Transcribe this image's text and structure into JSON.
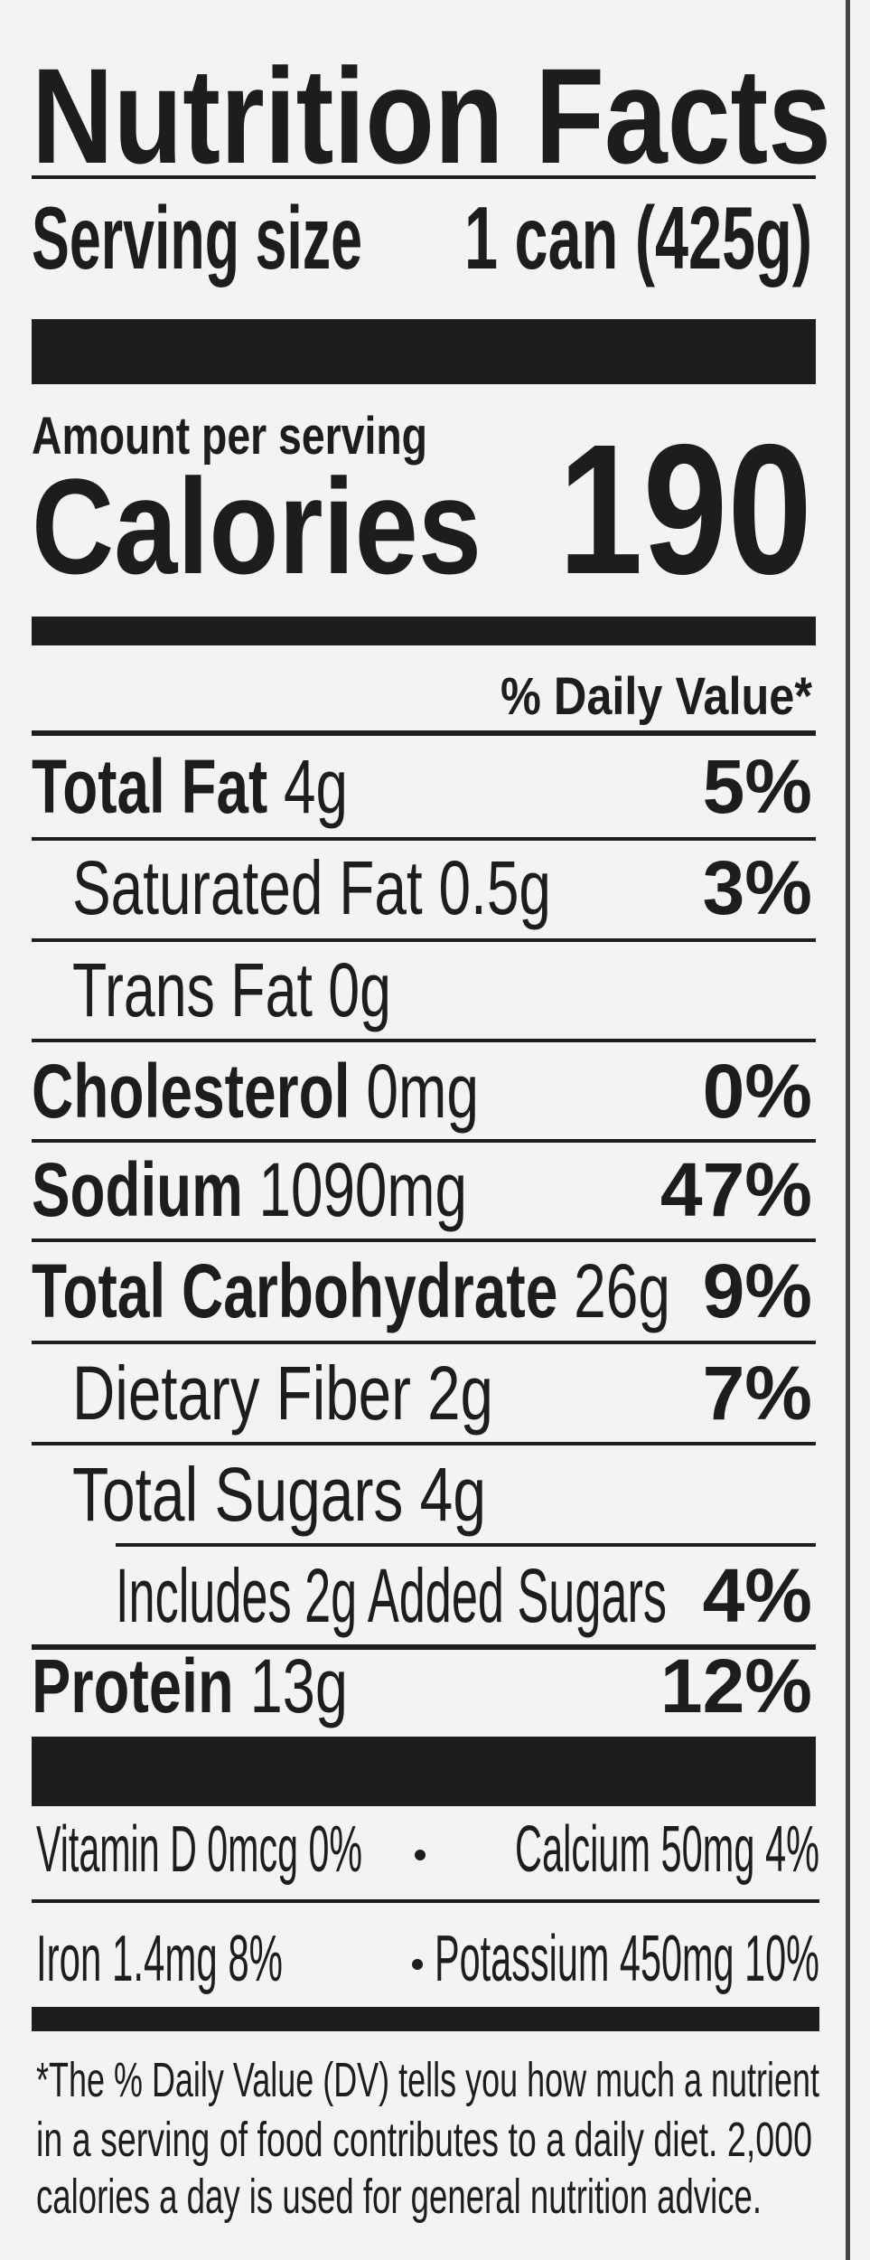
{
  "header": {
    "title": "Nutrition Facts"
  },
  "serving": {
    "label": "Serving size",
    "value": "1 can (425g)"
  },
  "amount_per_serving": "Amount per serving",
  "calories": {
    "label": "Calories",
    "value": 190
  },
  "daily_value_header": "% Daily Value*",
  "nutrients": [
    {
      "name": "Total Fat",
      "amount": "4g",
      "dv": "5%"
    },
    {
      "name": "Saturated Fat",
      "amount": "0.5g",
      "dv": "3%"
    },
    {
      "name": "Trans Fat",
      "amount": "0g"
    },
    {
      "name": "Cholesterol",
      "amount": "0mg",
      "dv": "0%"
    },
    {
      "name": "Sodium",
      "amount": "1090mg",
      "dv": "47%"
    },
    {
      "name": "Total Carbohydrate",
      "amount": "26g",
      "dv": "9%"
    },
    {
      "name": "Dietary Fiber",
      "amount": "2g",
      "dv": "7%"
    },
    {
      "name": "Total Sugars",
      "amount": "4g"
    },
    {
      "name": "Includes 2g Added Sugars",
      "dv": "4%"
    },
    {
      "name": "Protein",
      "amount": "13g",
      "dv": "12%"
    }
  ],
  "micronutrients": [
    "Vitamin D 0mcg 0%",
    "Calcium 50mg 4%",
    "Iron 1.4mg 8%",
    "Potassium 450mg 10%"
  ],
  "footnote": [
    "*The % Daily Value (DV) tells you how much a nutrient",
    "in a serving of food contributes to a daily diet. 2,000",
    "calories a day is used for general nutrition advice."
  ]
}
